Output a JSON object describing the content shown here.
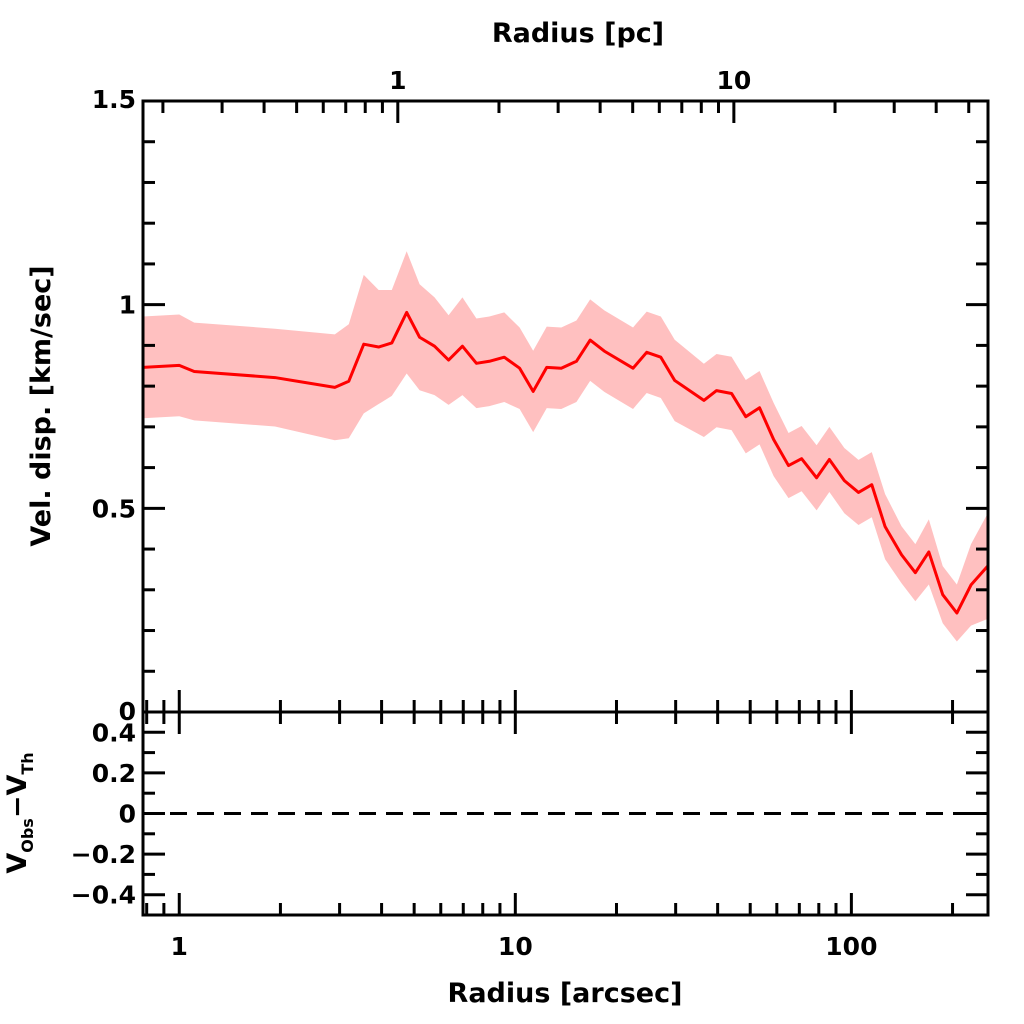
{
  "chart_data": {
    "type": "line",
    "xlabel": "Radius [arcsec]",
    "x2label": "Radius [pc]",
    "ylabel": "Vel. disp. [km/sec]",
    "residual_ylabel": {
      "main": "V",
      "sub1": "Obs",
      "minus": "−V",
      "sub2": "Th"
    },
    "xscale": "log",
    "xlim": [
      0.78,
      255
    ],
    "ylim": [
      0,
      1.5
    ],
    "residual_ylim": [
      -0.5,
      0.5
    ],
    "arcsec_per_pc": 4.47,
    "x_tick_labels": [
      "1",
      "10",
      "100"
    ],
    "x_ticks": [
      1,
      10,
      100
    ],
    "x2_tick_labels": [
      "1",
      "10"
    ],
    "x2_ticks": [
      1,
      10
    ],
    "y_tick_labels": [
      "0",
      "0.5",
      "1",
      "1.5"
    ],
    "y_ticks": [
      0,
      0.5,
      1,
      1.5
    ],
    "residual_tick_labels": [
      "0.4",
      "0.2",
      "0",
      "−0.2",
      "−0.4"
    ],
    "residual_ticks": [
      0.4,
      0.2,
      0,
      -0.2,
      -0.4
    ],
    "grid": false,
    "line_color": "#ff0000",
    "band_color": "#ffc0c0",
    "residual_line": {
      "value": 0,
      "style": "dashed",
      "color": "#000000"
    },
    "series": [
      {
        "x": [
          0.777,
          1.0,
          1.108,
          1.927,
          2.903,
          3.195,
          3.54,
          3.92,
          4.29,
          4.75,
          5.19,
          5.75,
          6.33,
          6.96,
          7.66,
          8.37,
          9.27,
          10.3,
          11.3,
          12.4,
          13.7,
          15.2,
          16.7,
          18.4,
          22.4,
          24.6,
          27.1,
          29.8,
          36.4,
          39.7,
          44.0,
          48.5,
          53.3,
          58.7,
          65.0,
          71.1,
          78.8,
          86.0,
          95.3,
          105,
          115,
          126,
          141,
          155,
          170,
          187,
          206,
          227,
          255
        ],
        "y": [
          0.846,
          0.851,
          0.836,
          0.821,
          0.797,
          0.812,
          0.903,
          0.896,
          0.906,
          0.981,
          0.92,
          0.898,
          0.864,
          0.898,
          0.856,
          0.861,
          0.871,
          0.844,
          0.787,
          0.846,
          0.844,
          0.861,
          0.913,
          0.886,
          0.844,
          0.883,
          0.871,
          0.814,
          0.765,
          0.789,
          0.782,
          0.725,
          0.747,
          0.669,
          0.605,
          0.622,
          0.575,
          0.62,
          0.568,
          0.539,
          0.558,
          0.455,
          0.386,
          0.342,
          0.393,
          0.288,
          0.243,
          0.312,
          0.359
        ],
        "error": [
          0.125,
          0.125,
          0.12,
          0.12,
          0.13,
          0.14,
          0.17,
          0.14,
          0.13,
          0.15,
          0.13,
          0.12,
          0.11,
          0.12,
          0.11,
          0.11,
          0.11,
          0.1,
          0.1,
          0.1,
          0.1,
          0.1,
          0.1,
          0.1,
          0.1,
          0.1,
          0.1,
          0.1,
          0.09,
          0.09,
          0.09,
          0.09,
          0.09,
          0.09,
          0.08,
          0.08,
          0.08,
          0.08,
          0.08,
          0.08,
          0.08,
          0.08,
          0.07,
          0.07,
          0.08,
          0.07,
          0.07,
          0.1,
          0.13
        ]
      }
    ]
  }
}
